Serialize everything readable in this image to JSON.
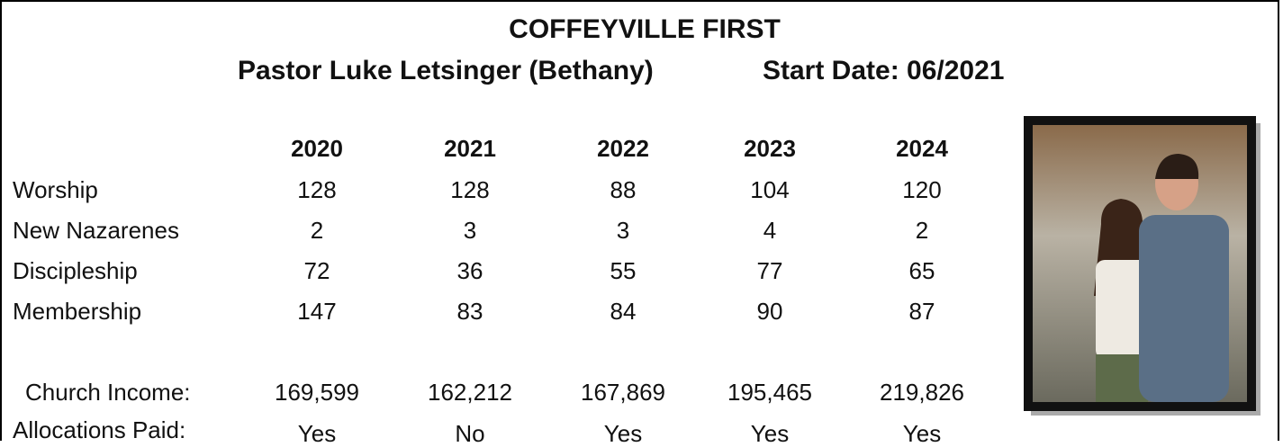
{
  "header": {
    "title": "COFFEYVILLE FIRST",
    "pastor": "Pastor Luke Letsinger (Bethany)",
    "start_date": "Start Date: 06/2021"
  },
  "table": {
    "years": [
      "2020",
      "2021",
      "2022",
      "2023",
      "2024"
    ],
    "rows": [
      {
        "label": "Worship",
        "values": [
          "128",
          "128",
          "88",
          "104",
          "120"
        ]
      },
      {
        "label": "New Nazarenes",
        "values": [
          "2",
          "3",
          "3",
          "4",
          "2"
        ]
      },
      {
        "label": "Discipleship",
        "values": [
          "72",
          "36",
          "55",
          "77",
          "65"
        ]
      },
      {
        "label": "Membership",
        "values": [
          "147",
          "83",
          "84",
          "90",
          "87"
        ]
      },
      {
        "label": "Church Income:",
        "values": [
          "169,599",
          "162,212",
          "167,869",
          "195,465",
          "219,826"
        ]
      },
      {
        "label": "Allocations Paid:",
        "values": [
          "Yes",
          "No",
          "Yes",
          "Yes",
          "Yes"
        ]
      }
    ]
  }
}
